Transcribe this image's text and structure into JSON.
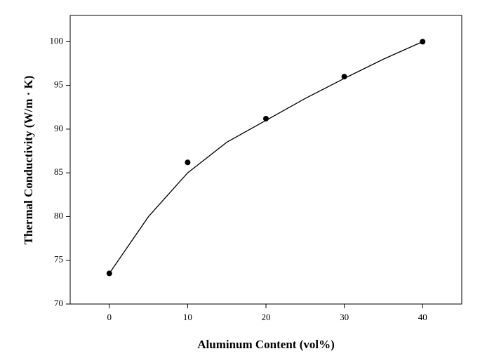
{
  "chart_data": {
    "type": "scatter",
    "x_label": "Aluminum Content (vol%)",
    "y_label": "Thermal Conductivity (W/m · K)",
    "x": [
      0,
      10,
      20,
      30,
      40
    ],
    "values": [
      73.5,
      86.2,
      91.2,
      96,
      100
    ],
    "color": "#000000",
    "curve": {
      "x": [
        0,
        5,
        10,
        15,
        20,
        25,
        30,
        35,
        40
      ],
      "values": [
        73.5,
        80,
        85,
        88.5,
        91,
        93.5,
        95.8,
        98,
        100
      ],
      "color": "#000000"
    },
    "xlim": [
      -5,
      45
    ],
    "xticks": [
      0,
      10,
      20,
      30,
      40
    ],
    "ylim": [
      70,
      103
    ],
    "yticks": [
      70,
      75,
      80,
      85,
      90,
      95,
      100
    ],
    "grid": false
  }
}
